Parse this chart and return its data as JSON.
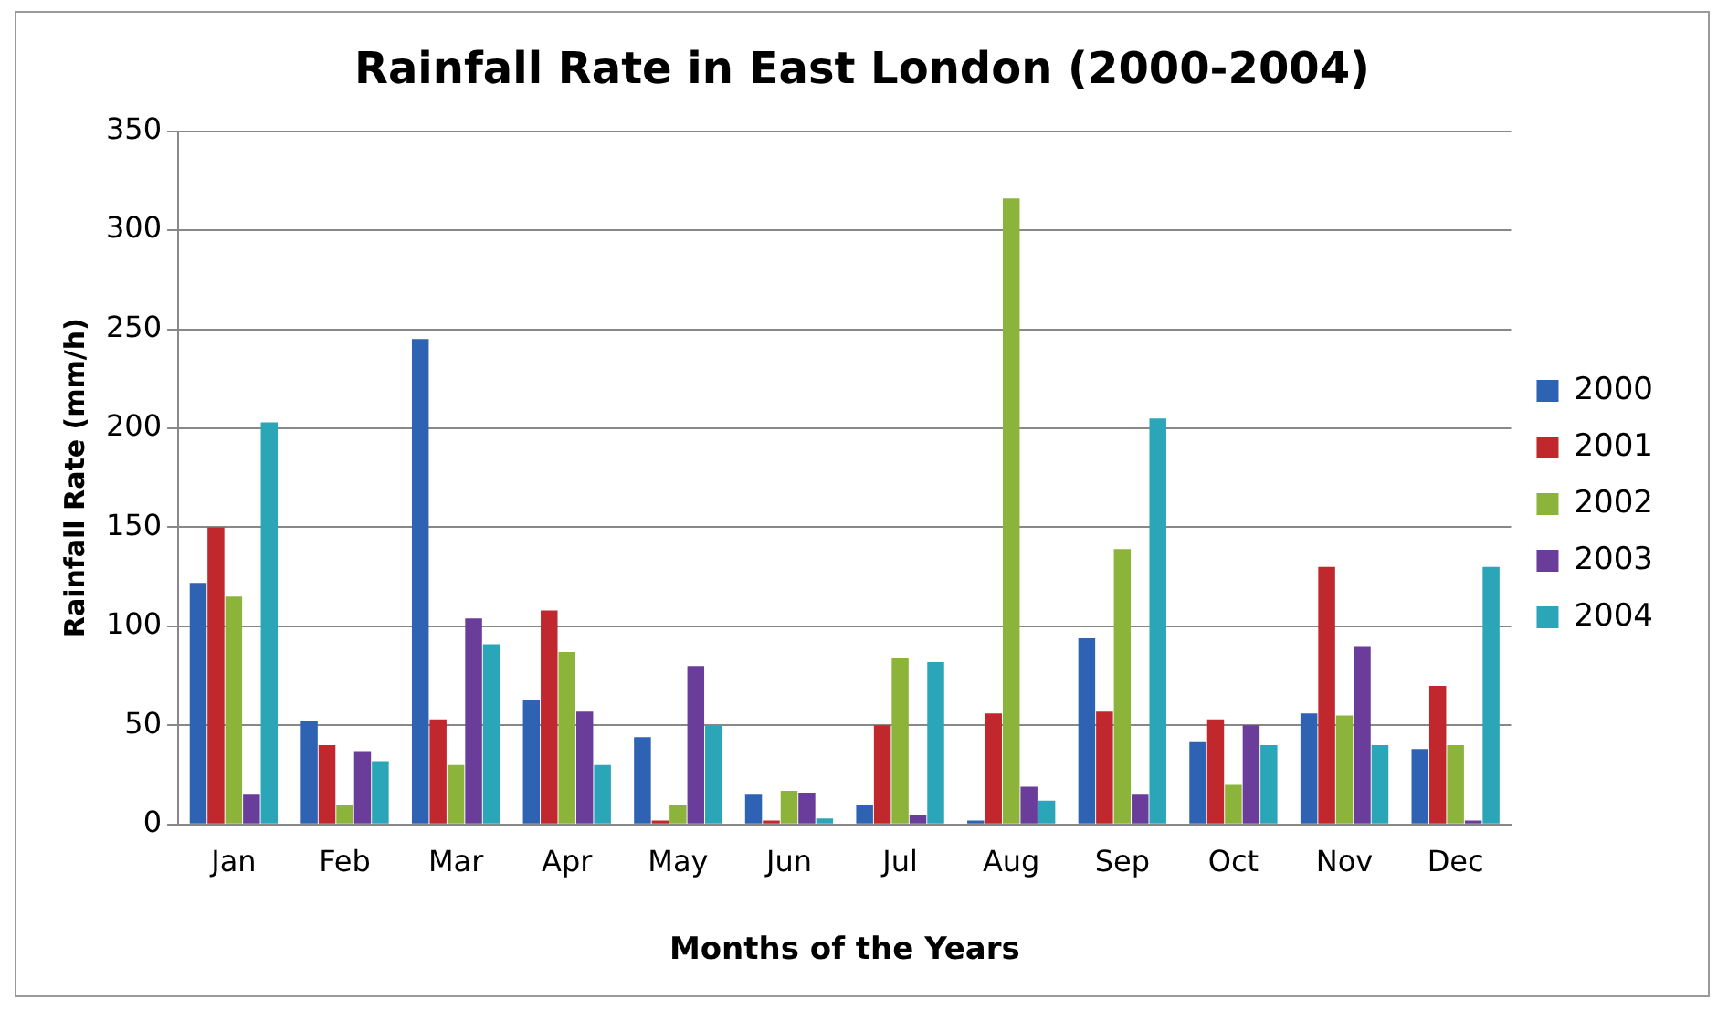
{
  "chart_data": {
    "type": "bar",
    "title": "Rainfall Rate in East London (2000-2004)",
    "xlabel": "Months of the Years",
    "ylabel": "Rainfall Rate (mm/h)",
    "categories": [
      "Jan",
      "Feb",
      "Mar",
      "Apr",
      "May",
      "Jun",
      "Jul",
      "Aug",
      "Sep",
      "Oct",
      "Nov",
      "Dec"
    ],
    "series": [
      {
        "name": "2000",
        "color": "#2e62b3",
        "values": [
          122,
          52,
          245,
          63,
          44,
          15,
          10,
          2,
          94,
          42,
          56,
          38
        ]
      },
      {
        "name": "2001",
        "color": "#c0282d",
        "values": [
          150,
          40,
          53,
          108,
          2,
          2,
          50,
          56,
          57,
          53,
          130,
          70
        ]
      },
      {
        "name": "2002",
        "color": "#8db43a",
        "values": [
          115,
          10,
          30,
          87,
          10,
          17,
          84,
          316,
          139,
          20,
          55,
          40
        ]
      },
      {
        "name": "2003",
        "color": "#6a3d9a",
        "values": [
          15,
          37,
          104,
          57,
          80,
          16,
          5,
          19,
          15,
          50,
          90,
          2
        ]
      },
      {
        "name": "2004",
        "color": "#2aa6b8",
        "values": [
          203,
          32,
          91,
          30,
          50,
          3,
          82,
          12,
          205,
          40,
          40,
          130
        ]
      }
    ],
    "ylim": [
      0,
      350
    ],
    "yticks": [
      0,
      50,
      100,
      150,
      200,
      250,
      300,
      350
    ],
    "grid": "y",
    "legend": "right"
  }
}
